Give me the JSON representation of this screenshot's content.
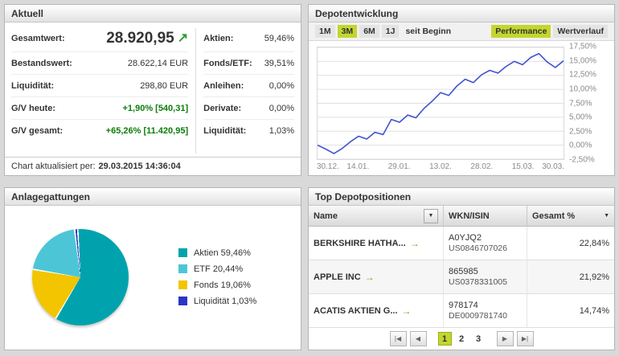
{
  "colors": {
    "accent": "#c3d62e",
    "positive": "#0b7d0b",
    "arrow": "#2f9e2e",
    "go_arrow": "#7aa10e",
    "line": "#4153d1"
  },
  "aktuell": {
    "title": "Aktuell",
    "up_arrow": "↗",
    "rows_left": [
      {
        "label": "Gesamtwert:",
        "value": "28.920,95"
      },
      {
        "label": "Bestandswert:",
        "value": "28.622,14 EUR"
      },
      {
        "label": "Liquidität:",
        "value": "298,80 EUR"
      },
      {
        "label": "G/V heute:",
        "value": "+1,90% [540,31]"
      },
      {
        "label": "G/V gesamt:",
        "value": "+65,26% [11.420,95]"
      }
    ],
    "rows_right": [
      {
        "label": "Aktien:",
        "value": "59,46%"
      },
      {
        "label": "Fonds/ETF:",
        "value": "39,51%"
      },
      {
        "label": "Anleihen:",
        "value": "0,00%"
      },
      {
        "label": "Derivate:",
        "value": "0,00%"
      },
      {
        "label": "Liquidität:",
        "value": "1,03%"
      }
    ],
    "footer_label": "Chart aktualisiert per:",
    "footer_value": "29.03.2015 14:36:04"
  },
  "depot": {
    "title": "Depotentwicklung",
    "tabs": [
      {
        "label": "1M"
      },
      {
        "label": "3M"
      },
      {
        "label": "6M"
      },
      {
        "label": "1J"
      },
      {
        "label": "seit Beginn"
      }
    ],
    "views": [
      {
        "label": "Performance"
      },
      {
        "label": "Wertverlauf"
      }
    ]
  },
  "chart_data": [
    {
      "type": "line",
      "title": "Depotentwicklung Performance 3M",
      "x_ticks": [
        "30.12.",
        "14.01.",
        "29.01.",
        "13.02.",
        "28.02.",
        "15.03.",
        "30.03."
      ],
      "y_ticks": [
        "17,50%",
        "15,00%",
        "12,50%",
        "10,00%",
        "7,50%",
        "5,00%",
        "2,50%",
        "0,00%",
        "-2,50%"
      ],
      "ylim": [
        -2.5,
        17.5
      ],
      "grid": true,
      "legend_position": "none",
      "line_color": "#4153d1",
      "series": [
        {
          "name": "Performance %",
          "values": [
            0,
            -0.7,
            -1.5,
            -0.6,
            0.6,
            1.6,
            1.1,
            2.3,
            1.9,
            4.6,
            4.1,
            5.4,
            4.9,
            6.6,
            7.9,
            9.4,
            8.9,
            10.6,
            11.8,
            11.2,
            12.6,
            13.4,
            12.9,
            14.1,
            15.0,
            14.4,
            15.7,
            16.4,
            14.9,
            13.9,
            15.1
          ]
        }
      ]
    },
    {
      "type": "pie",
      "title": "Anlagegattungen",
      "slices": [
        {
          "label": "Aktien",
          "value": 59.46,
          "color": "#00a3ad"
        },
        {
          "label": "ETF",
          "value": 20.44,
          "color": "#4cc6d6"
        },
        {
          "label": "Fonds",
          "value": 19.06,
          "color": "#f2c500"
        },
        {
          "label": "Liquidität",
          "value": 1.03,
          "color": "#2b35c4"
        }
      ],
      "draw": {
        "start_deg": -150,
        "order": [
          "Fonds",
          "ETF",
          "Liquidität",
          "Aktien"
        ]
      }
    }
  ],
  "anlage": {
    "title": "Anlagegattungen",
    "legend": [
      {
        "label": "Aktien 59,46%"
      },
      {
        "label": "ETF 20,44%"
      },
      {
        "label": "Fonds 19,06%"
      },
      {
        "label": "Liquidität 1,03%"
      }
    ]
  },
  "positions": {
    "title": "Top Depotpositionen",
    "columns": [
      "Name",
      "WKN/ISIN",
      "Gesamt %"
    ],
    "sort_icon": "▼",
    "go_arrow": "→",
    "rows": [
      {
        "name": "BERKSHIRE HATHA...",
        "wkn": "A0YJQ2",
        "isin": "US0846707026",
        "gesamt": "22,84%"
      },
      {
        "name": "APPLE INC",
        "wkn": "865985",
        "isin": "US0378331005",
        "gesamt": "21,92%"
      },
      {
        "name": "ACATIS AKTIEN G...",
        "wkn": "978174",
        "isin": "DE0009781740",
        "gesamt": "14,74%"
      }
    ],
    "pagination": {
      "first": "|◀",
      "prev": "◀",
      "pages": [
        "1",
        "2",
        "3"
      ],
      "active_page": "1",
      "next": "▶",
      "last": "▶|"
    }
  }
}
